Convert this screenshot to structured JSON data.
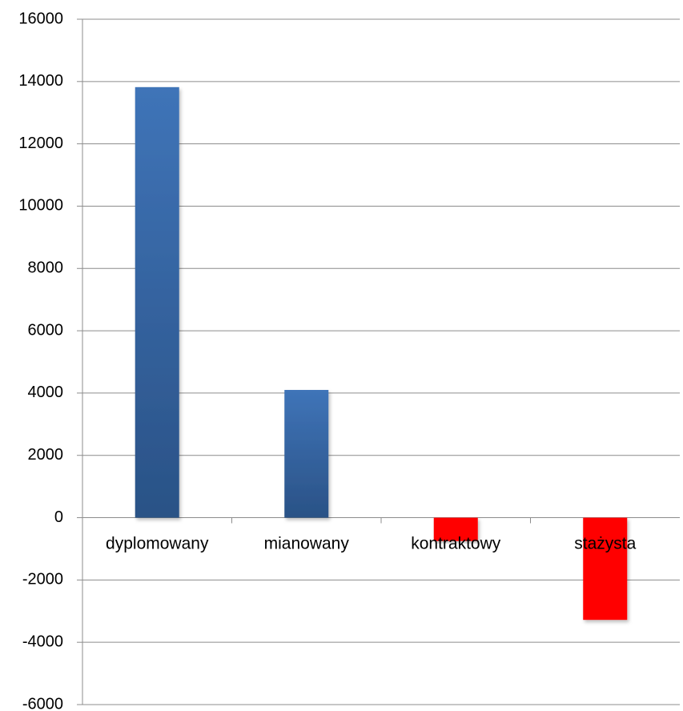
{
  "chart_data": {
    "type": "bar",
    "categories": [
      "dyplomowany",
      "mianowany",
      "kontraktowy",
      "stażysta"
    ],
    "values": [
      13820,
      4100,
      -750,
      -3280
    ],
    "title": "",
    "xlabel": "",
    "ylabel": "",
    "ylim": [
      -6000,
      16000
    ],
    "yticks": [
      16000,
      14000,
      12000,
      10000,
      8000,
      6000,
      4000,
      2000,
      0,
      -2000,
      -4000,
      -6000
    ],
    "grid": true,
    "legend": "none",
    "colors": {
      "positive_top": "#3f74b8",
      "positive_bottom": "#2a5286",
      "negative": "#ff0000",
      "grid": "#8c8c8c",
      "axis": "#8c8c8c",
      "text": "#000000"
    }
  }
}
